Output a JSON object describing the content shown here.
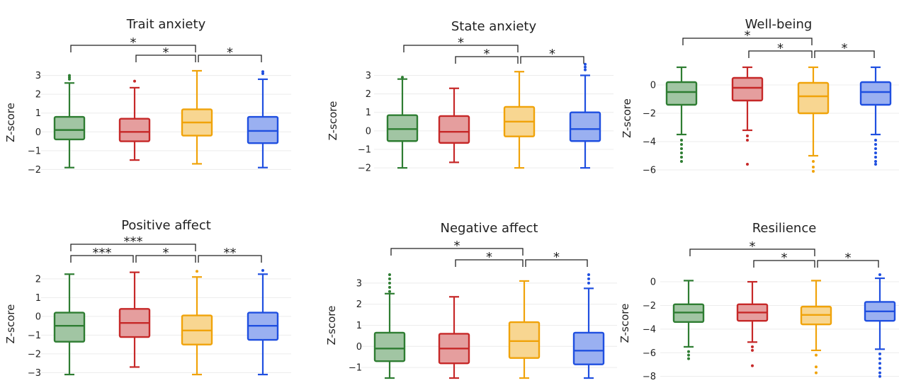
{
  "colors": {
    "group1": "#2e7d32",
    "group2": "#c62828",
    "group3": "#f0a30a",
    "group4": "#1f4fe0"
  },
  "chart_data": [
    {
      "type": "box",
      "title": "Trait anxiety",
      "ylabel": "Z-score",
      "ylim": [
        -2.4,
        3.4
      ],
      "yticks": [
        -2,
        -1,
        0,
        1,
        2,
        3
      ],
      "grid": true,
      "boxes": [
        {
          "color": "#2e7d32",
          "whisker_low": -1.9,
          "q1": -0.4,
          "median": 0.1,
          "q3": 0.8,
          "whisker_high": 2.6,
          "outliers": [
            2.8,
            2.9,
            3.0
          ]
        },
        {
          "color": "#c62828",
          "whisker_low": -1.5,
          "q1": -0.5,
          "median": 0.0,
          "q3": 0.7,
          "whisker_high": 2.35,
          "outliers": [
            2.7
          ]
        },
        {
          "color": "#f0a30a",
          "whisker_low": -1.7,
          "q1": -0.2,
          "median": 0.5,
          "q3": 1.2,
          "whisker_high": 3.25,
          "outliers": []
        },
        {
          "color": "#1f4fe0",
          "whisker_low": -1.9,
          "q1": -0.6,
          "median": 0.05,
          "q3": 0.8,
          "whisker_high": 2.8,
          "outliers": [
            3.1,
            3.2
          ]
        }
      ],
      "significance": [
        {
          "from": 0,
          "to": 2,
          "label": "*"
        },
        {
          "from": 1,
          "to": 2,
          "label": "*"
        },
        {
          "from": 2,
          "to": 3,
          "label": "*"
        }
      ]
    },
    {
      "type": "box",
      "title": "State anxiety",
      "ylabel": "Z-score",
      "ylim": [
        -2.3,
        3.4
      ],
      "yticks": [
        -2,
        -1,
        0,
        1,
        2,
        3
      ],
      "grid": true,
      "boxes": [
        {
          "color": "#2e7d32",
          "whisker_low": -2.0,
          "q1": -0.55,
          "median": 0.1,
          "q3": 0.85,
          "whisker_high": 2.8,
          "outliers": [
            2.9
          ]
        },
        {
          "color": "#c62828",
          "whisker_low": -1.7,
          "q1": -0.65,
          "median": -0.05,
          "q3": 0.8,
          "whisker_high": 2.3,
          "outliers": []
        },
        {
          "color": "#f0a30a",
          "whisker_low": -2.0,
          "q1": -0.3,
          "median": 0.5,
          "q3": 1.3,
          "whisker_high": 3.2,
          "outliers": []
        },
        {
          "color": "#1f4fe0",
          "whisker_low": -2.0,
          "q1": -0.55,
          "median": 0.1,
          "q3": 1.0,
          "whisker_high": 3.0,
          "outliers": [
            3.3,
            3.45,
            3.6
          ]
        }
      ],
      "significance": [
        {
          "from": 0,
          "to": 2,
          "label": "*"
        },
        {
          "from": 1,
          "to": 2,
          "label": "*"
        },
        {
          "from": 2,
          "to": 3,
          "label": "*"
        }
      ]
    },
    {
      "type": "box",
      "title": "Well-being",
      "ylabel": "Z-score",
      "ylim": [
        -6.5,
        1.8
      ],
      "yticks": [
        -6,
        -4,
        -2,
        0
      ],
      "grid": true,
      "boxes": [
        {
          "color": "#2e7d32",
          "whisker_low": -3.5,
          "q1": -1.4,
          "median": -0.5,
          "q3": 0.2,
          "whisker_high": 1.25,
          "outliers": [
            -3.9,
            -4.2,
            -4.5,
            -4.8,
            -5.1,
            -5.4
          ]
        },
        {
          "color": "#c62828",
          "whisker_low": -3.2,
          "q1": -1.1,
          "median": -0.2,
          "q3": 0.5,
          "whisker_high": 1.25,
          "outliers": [
            -3.6,
            -3.9,
            -5.6
          ]
        },
        {
          "color": "#f0a30a",
          "whisker_low": -5.0,
          "q1": -2.0,
          "median": -0.8,
          "q3": 0.15,
          "whisker_high": 1.25,
          "outliers": [
            -5.4,
            -5.8,
            -6.1
          ]
        },
        {
          "color": "#1f4fe0",
          "whisker_low": -3.5,
          "q1": -1.4,
          "median": -0.5,
          "q3": 0.2,
          "whisker_high": 1.25,
          "outliers": [
            -3.9,
            -4.2,
            -4.5,
            -4.8,
            -5.1,
            -5.4,
            -5.6
          ]
        }
      ],
      "significance": [
        {
          "from": 0,
          "to": 2,
          "label": "*"
        },
        {
          "from": 1,
          "to": 2,
          "label": "*"
        },
        {
          "from": 2,
          "to": 3,
          "label": "*"
        }
      ]
    },
    {
      "type": "box",
      "title": "Positive affect",
      "ylabel": "Z-score",
      "ylim": [
        -3.4,
        2.6
      ],
      "yticks": [
        -3,
        -2,
        -1,
        0,
        1,
        2
      ],
      "grid": true,
      "boxes": [
        {
          "color": "#2e7d32",
          "whisker_low": -3.1,
          "q1": -1.35,
          "median": -0.5,
          "q3": 0.2,
          "whisker_high": 2.25,
          "outliers": []
        },
        {
          "color": "#c62828",
          "whisker_low": -2.7,
          "q1": -1.1,
          "median": -0.35,
          "q3": 0.4,
          "whisker_high": 2.35,
          "outliers": []
        },
        {
          "color": "#f0a30a",
          "whisker_low": -3.1,
          "q1": -1.5,
          "median": -0.75,
          "q3": 0.05,
          "whisker_high": 2.1,
          "outliers": [
            2.4
          ]
        },
        {
          "color": "#1f4fe0",
          "whisker_low": -3.1,
          "q1": -1.25,
          "median": -0.5,
          "q3": 0.2,
          "whisker_high": 2.25,
          "outliers": [
            2.45
          ]
        }
      ],
      "significance": [
        {
          "from": 0,
          "to": 2,
          "label": "***"
        },
        {
          "from": 0,
          "to": 1,
          "label": "***"
        },
        {
          "from": 1,
          "to": 2,
          "label": "*"
        },
        {
          "from": 2,
          "to": 3,
          "label": "**"
        }
      ]
    },
    {
      "type": "box",
      "title": "Negative affect",
      "ylabel": "Z-score",
      "ylim": [
        -1.6,
        3.6
      ],
      "yticks": [
        -1,
        0,
        1,
        2,
        3
      ],
      "grid": true,
      "boxes": [
        {
          "color": "#2e7d32",
          "whisker_low": -1.5,
          "q1": -0.7,
          "median": -0.1,
          "q3": 0.65,
          "whisker_high": 2.5,
          "outliers": [
            2.6,
            2.8,
            3.0,
            3.2,
            3.4
          ]
        },
        {
          "color": "#c62828",
          "whisker_low": -1.5,
          "q1": -0.8,
          "median": -0.1,
          "q3": 0.6,
          "whisker_high": 2.35,
          "outliers": []
        },
        {
          "color": "#f0a30a",
          "whisker_low": -1.5,
          "q1": -0.55,
          "median": 0.25,
          "q3": 1.15,
          "whisker_high": 3.1,
          "outliers": []
        },
        {
          "color": "#1f4fe0",
          "whisker_low": -1.5,
          "q1": -0.85,
          "median": -0.2,
          "q3": 0.65,
          "whisker_high": 2.75,
          "outliers": [
            3.0,
            3.2,
            3.4
          ]
        }
      ],
      "significance": [
        {
          "from": 0,
          "to": 2,
          "label": "*"
        },
        {
          "from": 1,
          "to": 2,
          "label": "*"
        },
        {
          "from": 2,
          "to": 3,
          "label": "*"
        }
      ]
    },
    {
      "type": "box",
      "title": "Resilience",
      "ylabel": "Z-score",
      "ylim": [
        -8.2,
        1.2
      ],
      "yticks": [
        -8,
        -6,
        -4,
        -2,
        0
      ],
      "grid": true,
      "boxes": [
        {
          "color": "#2e7d32",
          "whisker_low": -5.5,
          "q1": -3.4,
          "median": -2.6,
          "q3": -1.9,
          "whisker_high": 0.1,
          "outliers": [
            -5.9,
            -6.2,
            -6.5
          ]
        },
        {
          "color": "#c62828",
          "whisker_low": -5.1,
          "q1": -3.3,
          "median": -2.6,
          "q3": -1.9,
          "whisker_high": 0.0,
          "outliers": [
            -5.5,
            -5.8,
            -7.1
          ]
        },
        {
          "color": "#f0a30a",
          "whisker_low": -5.8,
          "q1": -3.6,
          "median": -2.8,
          "q3": -2.1,
          "whisker_high": 0.1,
          "outliers": [
            -6.2,
            -7.2,
            -7.7
          ]
        },
        {
          "color": "#1f4fe0",
          "whisker_low": -5.7,
          "q1": -3.3,
          "median": -2.5,
          "q3": -1.7,
          "whisker_high": 0.3,
          "outliers": [
            0.6,
            -6.1,
            -6.5,
            -6.9,
            -7.3,
            -7.7,
            -8.0
          ]
        }
      ],
      "significance": [
        {
          "from": 0,
          "to": 2,
          "label": "*"
        },
        {
          "from": 1,
          "to": 2,
          "label": "*"
        },
        {
          "from": 2,
          "to": 3,
          "label": "*"
        }
      ]
    }
  ]
}
